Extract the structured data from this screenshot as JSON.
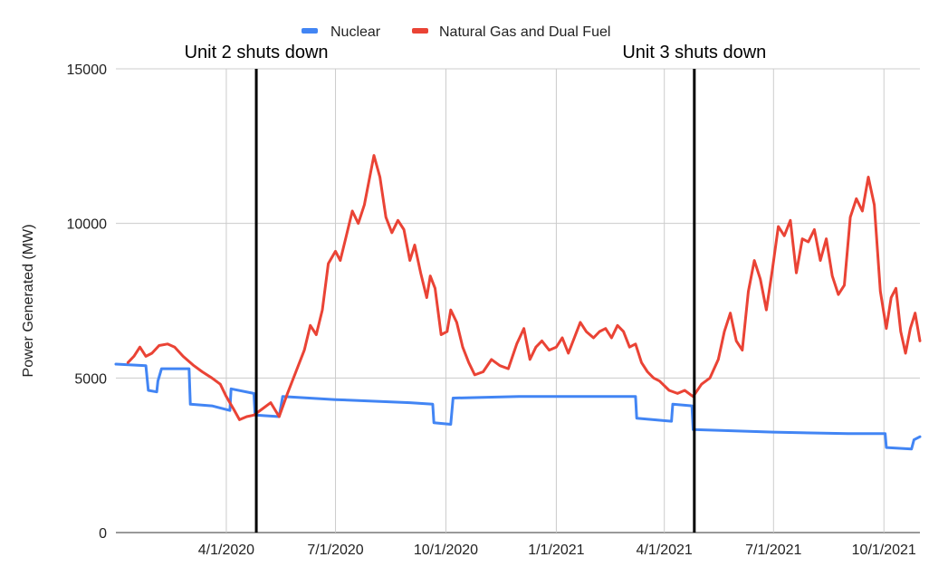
{
  "chart_data": {
    "type": "line",
    "title": "",
    "xlabel": "",
    "ylabel": "Power Generated (MW)",
    "ylim": [
      0,
      15000
    ],
    "xlim": [
      "2019-12-31",
      "2021-10-31"
    ],
    "y_ticks": [
      "0",
      "5000",
      "10000",
      "15000"
    ],
    "x_ticks": [
      {
        "date": "2020-04-01",
        "label": "4/1/2020"
      },
      {
        "date": "2020-07-01",
        "label": "7/1/2020"
      },
      {
        "date": "2020-10-01",
        "label": "10/1/2020"
      },
      {
        "date": "2021-01-01",
        "label": "1/1/2021"
      },
      {
        "date": "2021-04-01",
        "label": "4/1/2021"
      },
      {
        "date": "2021-07-01",
        "label": "7/1/2021"
      },
      {
        "date": "2021-10-01",
        "label": "10/1/2021"
      }
    ],
    "grid": true,
    "legend_position": "top",
    "series": [
      {
        "name": "Nuclear",
        "color": "#4285f4",
        "points": [
          [
            "2019-12-31",
            5450
          ],
          [
            "2020-01-25",
            5400
          ],
          [
            "2020-01-27",
            4600
          ],
          [
            "2020-02-03",
            4550
          ],
          [
            "2020-02-04",
            4900
          ],
          [
            "2020-02-07",
            5300
          ],
          [
            "2020-03-01",
            5300
          ],
          [
            "2020-03-02",
            4150
          ],
          [
            "2020-03-20",
            4100
          ],
          [
            "2020-04-04",
            3950
          ],
          [
            "2020-04-05",
            4650
          ],
          [
            "2020-04-24",
            4500
          ],
          [
            "2020-04-25",
            3800
          ],
          [
            "2020-05-15",
            3750
          ],
          [
            "2020-05-18",
            4400
          ],
          [
            "2020-07-01",
            4300
          ],
          [
            "2020-09-01",
            4200
          ],
          [
            "2020-09-20",
            4150
          ],
          [
            "2020-09-21",
            3550
          ],
          [
            "2020-10-05",
            3500
          ],
          [
            "2020-10-07",
            4350
          ],
          [
            "2020-12-01",
            4400
          ],
          [
            "2021-01-01",
            4400
          ],
          [
            "2021-03-08",
            4400
          ],
          [
            "2021-03-09",
            3700
          ],
          [
            "2021-04-07",
            3600
          ],
          [
            "2021-04-08",
            4150
          ],
          [
            "2021-04-24",
            4100
          ],
          [
            "2021-04-25",
            3330
          ],
          [
            "2021-07-01",
            3250
          ],
          [
            "2021-09-01",
            3200
          ],
          [
            "2021-10-02",
            3200
          ],
          [
            "2021-10-03",
            2750
          ],
          [
            "2021-10-24",
            2700
          ],
          [
            "2021-10-26",
            3000
          ],
          [
            "2021-10-31",
            3100
          ]
        ]
      },
      {
        "name": "Natural Gas and Dual Fuel",
        "color": "#ea4335",
        "points": [
          [
            "2020-01-10",
            5500
          ],
          [
            "2020-01-15",
            5700
          ],
          [
            "2020-01-20",
            6000
          ],
          [
            "2020-01-25",
            5700
          ],
          [
            "2020-01-30",
            5800
          ],
          [
            "2020-02-05",
            6050
          ],
          [
            "2020-02-12",
            6100
          ],
          [
            "2020-02-18",
            6000
          ],
          [
            "2020-02-25",
            5700
          ],
          [
            "2020-03-05",
            5400
          ],
          [
            "2020-03-12",
            5200
          ],
          [
            "2020-03-20",
            5000
          ],
          [
            "2020-03-27",
            4800
          ],
          [
            "2020-04-01",
            4400
          ],
          [
            "2020-04-07",
            4000
          ],
          [
            "2020-04-12",
            3650
          ],
          [
            "2020-04-18",
            3750
          ],
          [
            "2020-04-24",
            3800
          ],
          [
            "2020-05-01",
            4000
          ],
          [
            "2020-05-08",
            4200
          ],
          [
            "2020-05-15",
            3750
          ],
          [
            "2020-05-22",
            4500
          ],
          [
            "2020-05-29",
            5200
          ],
          [
            "2020-06-05",
            5900
          ],
          [
            "2020-06-10",
            6700
          ],
          [
            "2020-06-15",
            6400
          ],
          [
            "2020-06-20",
            7200
          ],
          [
            "2020-06-25",
            8700
          ],
          [
            "2020-07-01",
            9100
          ],
          [
            "2020-07-05",
            8800
          ],
          [
            "2020-07-10",
            9600
          ],
          [
            "2020-07-15",
            10400
          ],
          [
            "2020-07-20",
            10000
          ],
          [
            "2020-07-25",
            10600
          ],
          [
            "2020-07-30",
            11600
          ],
          [
            "2020-08-02",
            12200
          ],
          [
            "2020-08-07",
            11500
          ],
          [
            "2020-08-12",
            10200
          ],
          [
            "2020-08-17",
            9700
          ],
          [
            "2020-08-22",
            10100
          ],
          [
            "2020-08-27",
            9800
          ],
          [
            "2020-09-01",
            8800
          ],
          [
            "2020-09-05",
            9300
          ],
          [
            "2020-09-10",
            8400
          ],
          [
            "2020-09-15",
            7600
          ],
          [
            "2020-09-18",
            8300
          ],
          [
            "2020-09-22",
            7900
          ],
          [
            "2020-09-27",
            6400
          ],
          [
            "2020-10-02",
            6500
          ],
          [
            "2020-10-05",
            7200
          ],
          [
            "2020-10-10",
            6800
          ],
          [
            "2020-10-15",
            6000
          ],
          [
            "2020-10-20",
            5500
          ],
          [
            "2020-10-25",
            5100
          ],
          [
            "2020-11-01",
            5200
          ],
          [
            "2020-11-08",
            5600
          ],
          [
            "2020-11-15",
            5400
          ],
          [
            "2020-11-22",
            5300
          ],
          [
            "2020-11-29",
            6100
          ],
          [
            "2020-12-05",
            6600
          ],
          [
            "2020-12-10",
            5600
          ],
          [
            "2020-12-15",
            6000
          ],
          [
            "2020-12-20",
            6200
          ],
          [
            "2020-12-26",
            5900
          ],
          [
            "2021-01-01",
            6000
          ],
          [
            "2021-01-06",
            6300
          ],
          [
            "2021-01-11",
            5800
          ],
          [
            "2021-01-16",
            6300
          ],
          [
            "2021-01-21",
            6800
          ],
          [
            "2021-01-26",
            6500
          ],
          [
            "2021-02-01",
            6300
          ],
          [
            "2021-02-06",
            6500
          ],
          [
            "2021-02-11",
            6600
          ],
          [
            "2021-02-16",
            6300
          ],
          [
            "2021-02-21",
            6700
          ],
          [
            "2021-02-26",
            6500
          ],
          [
            "2021-03-03",
            6000
          ],
          [
            "2021-03-08",
            6100
          ],
          [
            "2021-03-13",
            5500
          ],
          [
            "2021-03-18",
            5200
          ],
          [
            "2021-03-23",
            5000
          ],
          [
            "2021-03-28",
            4900
          ],
          [
            "2021-04-05",
            4600
          ],
          [
            "2021-04-12",
            4500
          ],
          [
            "2021-04-18",
            4600
          ],
          [
            "2021-04-25",
            4400
          ],
          [
            "2021-05-02",
            4800
          ],
          [
            "2021-05-09",
            5000
          ],
          [
            "2021-05-16",
            5600
          ],
          [
            "2021-05-21",
            6500
          ],
          [
            "2021-05-26",
            7100
          ],
          [
            "2021-05-31",
            6200
          ],
          [
            "2021-06-05",
            5900
          ],
          [
            "2021-06-10",
            7800
          ],
          [
            "2021-06-15",
            8800
          ],
          [
            "2021-06-20",
            8200
          ],
          [
            "2021-06-25",
            7200
          ],
          [
            "2021-06-30",
            8500
          ],
          [
            "2021-07-05",
            9900
          ],
          [
            "2021-07-10",
            9600
          ],
          [
            "2021-07-15",
            10100
          ],
          [
            "2021-07-20",
            8400
          ],
          [
            "2021-07-25",
            9500
          ],
          [
            "2021-07-30",
            9400
          ],
          [
            "2021-08-04",
            9800
          ],
          [
            "2021-08-09",
            8800
          ],
          [
            "2021-08-14",
            9500
          ],
          [
            "2021-08-19",
            8300
          ],
          [
            "2021-08-24",
            7700
          ],
          [
            "2021-08-29",
            8000
          ],
          [
            "2021-09-03",
            10200
          ],
          [
            "2021-09-08",
            10800
          ],
          [
            "2021-09-13",
            10400
          ],
          [
            "2021-09-18",
            11500
          ],
          [
            "2021-09-23",
            10600
          ],
          [
            "2021-09-28",
            7800
          ],
          [
            "2021-10-03",
            6600
          ],
          [
            "2021-10-07",
            7600
          ],
          [
            "2021-10-11",
            7900
          ],
          [
            "2021-10-15",
            6500
          ],
          [
            "2021-10-19",
            5800
          ],
          [
            "2021-10-23",
            6600
          ],
          [
            "2021-10-27",
            7100
          ],
          [
            "2021-10-31",
            6200
          ]
        ]
      }
    ],
    "annotations": [
      {
        "date": "2020-04-26",
        "text": "Unit 2 shuts down"
      },
      {
        "date": "2021-04-26",
        "text": "Unit 3 shuts down"
      }
    ]
  }
}
